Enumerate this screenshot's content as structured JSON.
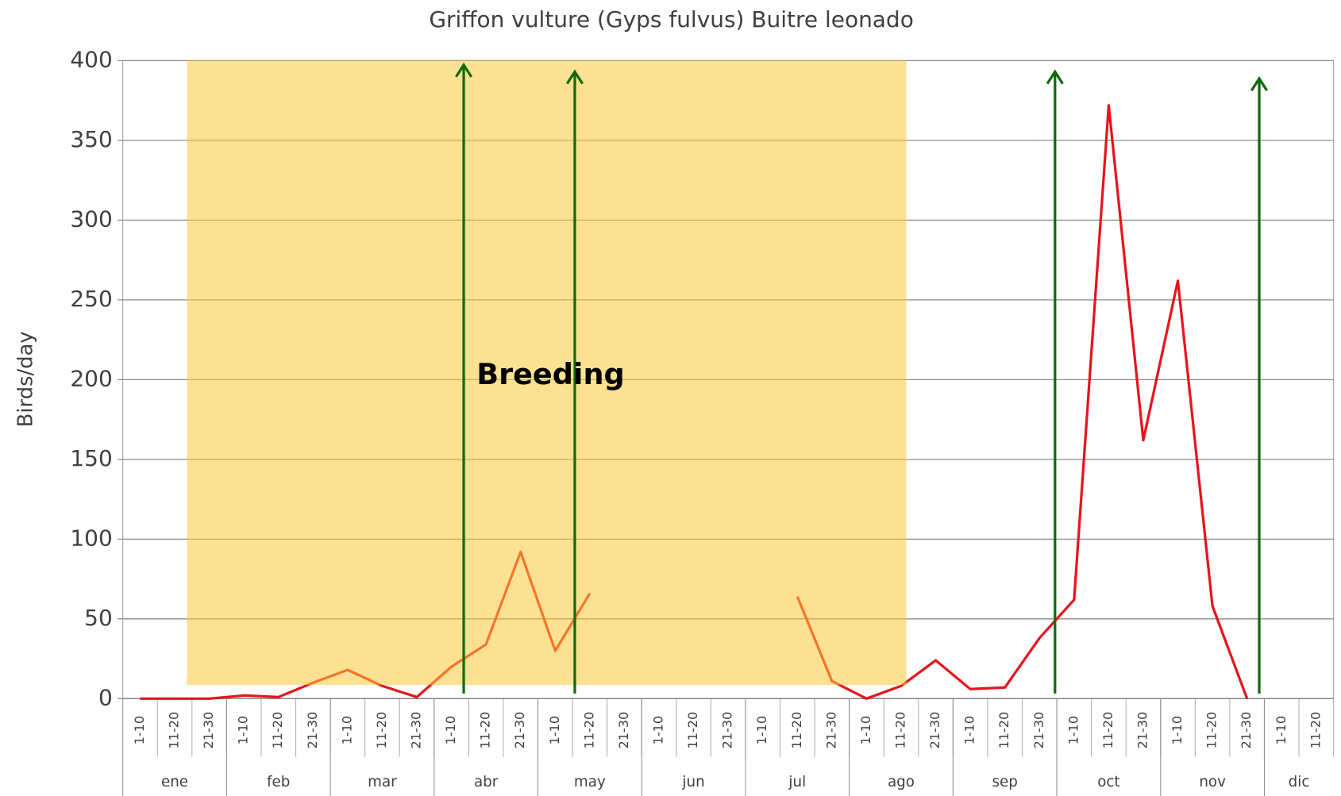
{
  "chart_data": {
    "type": "line",
    "title": "Griffon vulture (Gyps fulvus) Buitre leonado",
    "ylabel": "Birds/day",
    "annotation": "Breeding",
    "categories": [
      "1-10",
      "11-20",
      "21-30",
      "1-10",
      "11-20",
      "21-30",
      "1-10",
      "11-20",
      "21-30",
      "1-10",
      "11-20",
      "21-30",
      "1-10",
      "11-20",
      "21-30",
      "1-10",
      "11-20",
      "21-30",
      "1-10",
      "11-20",
      "21-30",
      "1-10",
      "11-20",
      "21-30",
      "1-10",
      "11-20",
      "21-30",
      "1-10",
      "11-20",
      "21-30",
      "1-10",
      "11-20",
      "21-30",
      "1-10",
      "11-20"
    ],
    "x_groups": [
      "ene",
      "feb",
      "mar",
      "abr",
      "may",
      "jun",
      "jul",
      "ago",
      "sep",
      "oct",
      "nov",
      "dic"
    ],
    "series": [
      {
        "name": "Griffon vulture",
        "color": "#e8141c",
        "values": [
          0,
          0,
          0,
          2,
          1,
          10,
          18,
          8,
          1,
          20,
          34,
          92,
          30,
          66,
          null,
          null,
          null,
          null,
          null,
          64,
          11,
          0,
          8,
          24,
          6,
          7,
          38,
          62,
          372,
          162,
          262,
          58,
          0,
          null,
          null
        ]
      }
    ],
    "ylim": [
      0,
      400
    ],
    "yticks": [
      0,
      50,
      100,
      150,
      200,
      250,
      300,
      350,
      400
    ],
    "grid": true
  }
}
